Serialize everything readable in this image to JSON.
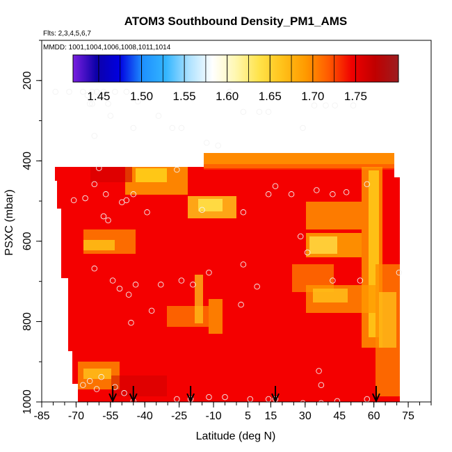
{
  "chart_data": {
    "type": "heatmap",
    "title": "ATOM3 Southbound Density_PM1_AMS",
    "subtitle_flts": "Flts: 2,3,4,5,6,7",
    "subtitle_mmdd": "MMDD: 1001,1004,1006,1008,1011,1014",
    "xlabel": "Latitude (deg N)",
    "ylabel": "PSXC (mbar)",
    "xlim": [
      -85,
      85
    ],
    "ylim": [
      1000,
      100
    ],
    "x_ticks": [
      -85,
      -70,
      -55,
      -40,
      -25,
      -10,
      5,
      15,
      30,
      45,
      60,
      75
    ],
    "y_ticks": [
      200,
      400,
      600,
      800,
      1000
    ],
    "colorbar_ticks": [
      "1.45",
      "1.50",
      "1.55",
      "1.60",
      "1.65",
      "1.70",
      "1.75"
    ],
    "colorbar_range": [
      1.42,
      1.8
    ],
    "colorbar_stops": [
      "#7a1fe0",
      "#0d00a8",
      "#0000e0",
      "#1e90ff",
      "#33b5ff",
      "#aee2ff",
      "#ffffff",
      "#fff7b0",
      "#ffe34a",
      "#ffc21a",
      "#ff9a00",
      "#ff5a00",
      "#f00000",
      "#c00000",
      "#9c1d20"
    ],
    "arrows_lat": [
      -54,
      -45,
      -20,
      17,
      61
    ],
    "sample_points": [
      [
        -79,
        228
      ],
      [
        -73,
        228
      ],
      [
        -67,
        228
      ],
      [
        -65,
        237
      ],
      [
        -64,
        258
      ],
      [
        -63,
        228
      ],
      [
        -61,
        228
      ],
      [
        -58,
        228
      ],
      [
        -56,
        258
      ],
      [
        -53,
        228
      ],
      [
        -48,
        228
      ],
      [
        -43,
        252
      ],
      [
        -55,
        288
      ],
      [
        -63,
        258
      ],
      [
        -62,
        338
      ],
      [
        -45,
        318
      ],
      [
        -34,
        288
      ],
      [
        -28,
        318
      ],
      [
        -24,
        318
      ],
      [
        -26,
        422
      ],
      [
        -17,
        198
      ],
      [
        -13,
        355
      ],
      [
        -8,
        362
      ],
      [
        -3,
        228
      ],
      [
        3,
        278
      ],
      [
        10,
        278
      ],
      [
        14,
        278
      ],
      [
        21,
        198
      ],
      [
        34,
        262
      ],
      [
        39,
        262
      ],
      [
        43,
        262
      ],
      [
        51,
        262
      ],
      [
        70,
        198
      ],
      [
        -60,
        418
      ],
      [
        -62,
        458
      ],
      [
        -71,
        498
      ],
      [
        -66,
        493
      ],
      [
        -57,
        483
      ],
      [
        -50,
        503
      ],
      [
        -48,
        498
      ],
      [
        -45,
        483
      ],
      [
        -15,
        522
      ],
      [
        -39,
        528
      ],
      [
        -58,
        538
      ],
      [
        -56,
        548
      ],
      [
        -62,
        668
      ],
      [
        -54,
        698
      ],
      [
        -51,
        718
      ],
      [
        -44,
        708
      ],
      [
        -47,
        733
      ],
      [
        -37,
        773
      ],
      [
        -33,
        708
      ],
      [
        -24,
        698
      ],
      [
        -12,
        678
      ],
      [
        -19,
        708
      ],
      [
        -46,
        803
      ],
      [
        2,
        758
      ],
      [
        3,
        658
      ],
      [
        3,
        528
      ],
      [
        9,
        713
      ],
      [
        14,
        483
      ],
      [
        17,
        463
      ],
      [
        24,
        483
      ],
      [
        28,
        588
      ],
      [
        29,
        318
      ],
      [
        31,
        628
      ],
      [
        35,
        473
      ],
      [
        42,
        483
      ],
      [
        48,
        478
      ],
      [
        57,
        458
      ],
      [
        36,
        923
      ],
      [
        37,
        958
      ],
      [
        -64,
        948
      ],
      [
        -67,
        958
      ],
      [
        -61,
        968
      ],
      [
        -59,
        938
      ],
      [
        -53,
        963
      ],
      [
        -49,
        978
      ],
      [
        -45,
        998
      ],
      [
        -26,
        993
      ],
      [
        -20,
        993
      ],
      [
        -12,
        988
      ],
      [
        -5,
        988
      ],
      [
        6,
        993
      ],
      [
        14,
        993
      ],
      [
        17,
        993
      ],
      [
        29,
        1003
      ],
      [
        37,
        1003
      ],
      [
        44,
        998
      ],
      [
        57,
        993
      ],
      [
        42,
        698
      ],
      [
        54,
        698
      ],
      [
        71,
        678
      ]
    ]
  }
}
